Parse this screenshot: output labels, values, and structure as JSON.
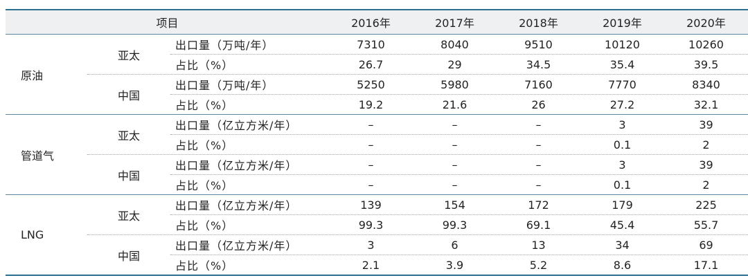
{
  "header": {
    "item": "项目",
    "years": [
      "2016年",
      "2017年",
      "2018年",
      "2019年",
      "2020年"
    ]
  },
  "groups": [
    {
      "label": "原油",
      "regions": [
        {
          "label": "亚太",
          "rows": [
            {
              "item": "出口量（万吨/年）",
              "values": [
                "7310",
                "8040",
                "9510",
                "10120",
                "10260"
              ]
            },
            {
              "item": "占比（%）",
              "values": [
                "26.7",
                "29",
                "34.5",
                "35.4",
                "39.5"
              ]
            }
          ]
        },
        {
          "label": "中国",
          "rows": [
            {
              "item": "出口量（万吨/年）",
              "values": [
                "5250",
                "5980",
                "7160",
                "7770",
                "8340"
              ]
            },
            {
              "item": "占比（%）",
              "values": [
                "19.2",
                "21.6",
                "26",
                "27.2",
                "32.1"
              ]
            }
          ]
        }
      ]
    },
    {
      "label": "管道气",
      "regions": [
        {
          "label": "亚太",
          "rows": [
            {
              "item": "出口量（亿立方米/年）",
              "values": [
                "–",
                "–",
                "–",
                "3",
                "39"
              ]
            },
            {
              "item": "占比（%）",
              "values": [
                "–",
                "–",
                "–",
                "0.1",
                "2"
              ]
            }
          ]
        },
        {
          "label": "中国",
          "rows": [
            {
              "item": "出口量（亿立方米/年）",
              "values": [
                "–",
                "–",
                "–",
                "3",
                "39"
              ]
            },
            {
              "item": "占比（%）",
              "values": [
                "–",
                "–",
                "–",
                "0.1",
                "2"
              ]
            }
          ]
        }
      ]
    },
    {
      "label": "LNG",
      "regions": [
        {
          "label": "亚太",
          "rows": [
            {
              "item": "出口量（亿立方米/年）",
              "values": [
                "139",
                "154",
                "172",
                "179",
                "225"
              ]
            },
            {
              "item": "占比（%）",
              "values": [
                "99.3",
                "99.3",
                "69.1",
                "45.4",
                "55.7"
              ]
            }
          ]
        },
        {
          "label": "中国",
          "rows": [
            {
              "item": "出口量（亿立方米/年）",
              "values": [
                "3",
                "6",
                "13",
                "34",
                "69"
              ]
            },
            {
              "item": "占比（%）",
              "values": [
                "2.1",
                "3.9",
                "5.2",
                "8.6",
                "17.1"
              ]
            }
          ]
        }
      ]
    }
  ]
}
